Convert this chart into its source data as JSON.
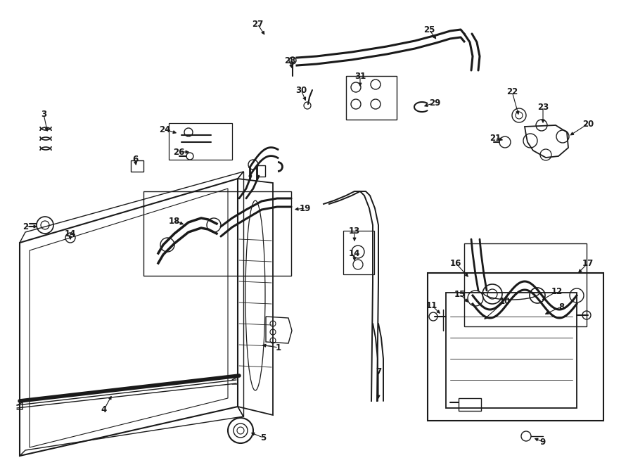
{
  "bg_color": "#ffffff",
  "lc": "#1a1a1a",
  "figsize": [
    9.0,
    6.61
  ],
  "dpi": 100,
  "labels": {
    "1": [
      390,
      495,
      358,
      492
    ],
    "2": [
      38,
      322,
      62,
      322
    ],
    "3": [
      65,
      165,
      72,
      192
    ],
    "4": [
      148,
      580,
      160,
      558
    ],
    "5": [
      368,
      620,
      340,
      612
    ],
    "6": [
      196,
      228,
      196,
      240
    ],
    "7": [
      537,
      530,
      537,
      570
    ],
    "8": [
      791,
      438,
      766,
      448
    ],
    "9": [
      762,
      625,
      750,
      620
    ],
    "10": [
      714,
      432,
      714,
      460
    ],
    "11": [
      617,
      435,
      634,
      450
    ],
    "12": [
      789,
      416,
      766,
      430
    ],
    "13": [
      503,
      330,
      503,
      348
    ],
    "14a": [
      503,
      362,
      503,
      378
    ],
    "14b": [
      104,
      333,
      104,
      345
    ],
    "15": [
      657,
      420,
      672,
      435
    ],
    "16": [
      650,
      376,
      673,
      398
    ],
    "17": [
      830,
      376,
      818,
      390
    ],
    "18": [
      252,
      316,
      268,
      322
    ],
    "19": [
      430,
      298,
      415,
      300
    ],
    "20": [
      833,
      178,
      806,
      196
    ],
    "21": [
      706,
      198,
      720,
      202
    ],
    "22": [
      730,
      132,
      741,
      168
    ],
    "23": [
      775,
      154,
      776,
      180
    ],
    "24": [
      238,
      185,
      258,
      192
    ],
    "25": [
      610,
      44,
      620,
      60
    ],
    "26": [
      258,
      218,
      275,
      218
    ],
    "27": [
      368,
      36,
      381,
      54
    ],
    "28": [
      415,
      88,
      418,
      102
    ],
    "29": [
      614,
      148,
      598,
      154
    ],
    "30": [
      432,
      130,
      438,
      148
    ],
    "31": [
      514,
      110,
      514,
      128
    ]
  }
}
